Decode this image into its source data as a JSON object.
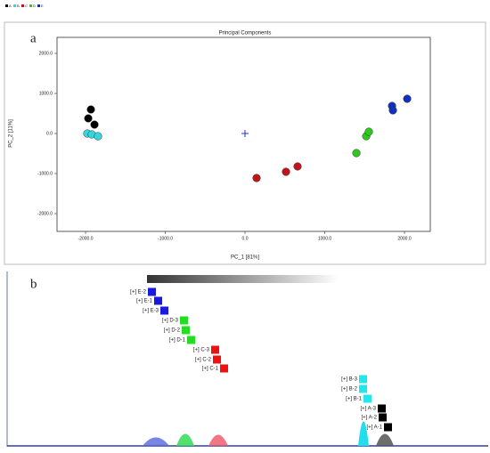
{
  "chart_data": {
    "type": "scatter",
    "title": "Principal Components",
    "panel_label": "a",
    "x_label": "PC_1 [81%]",
    "y_label": "PC_2 [11%]",
    "xlim": [
      -2358,
      2324
    ],
    "ylim": [
      -2444,
      2400
    ],
    "xticks": [
      {
        "value": -2000,
        "label": "-2000.0"
      },
      {
        "value": -1000,
        "label": "-1000.0"
      },
      {
        "value": 0,
        "label": "0.0"
      },
      {
        "value": 1000,
        "label": "1000.0"
      },
      {
        "value": 2000,
        "label": "2000.0"
      }
    ],
    "yticks": [
      {
        "value": -2000,
        "label": "-2000.0"
      },
      {
        "value": -1000,
        "label": "-1000.0"
      },
      {
        "value": 0,
        "label": "0.0"
      },
      {
        "value": 1000,
        "label": "1000.0"
      },
      {
        "value": 2000,
        "label": "2000.0"
      }
    ],
    "series": [
      {
        "name": "A",
        "color": "#000000",
        "x": [
          -1933,
          -1966,
          -1888
        ],
        "values": [
          600,
          378,
          222
        ]
      },
      {
        "name": "B",
        "color": "#33d6e0",
        "x": [
          -1978,
          -1922,
          -1844
        ],
        "values": [
          0,
          -22,
          -67
        ]
      },
      {
        "name": "C",
        "color": "#c0141a",
        "x": [
          145,
          514,
          659
        ],
        "values": [
          -1111,
          -956,
          -822
        ]
      },
      {
        "name": "D",
        "color": "#2ec81e",
        "x": [
          1397,
          1520,
          1553
        ],
        "values": [
          -489,
          -67,
          44
        ]
      },
      {
        "name": "E",
        "color": "#1030c0",
        "x": [
          1844,
          1855,
          2034
        ],
        "values": [
          689,
          578,
          867
        ]
      }
    ]
  },
  "panel_b": {
    "label": "b",
    "groups": [
      {
        "color": "#1a1adc",
        "items": [
          "[+] E-2",
          "[+] E-1",
          "[+] E-3"
        ]
      },
      {
        "color": "#22dd22",
        "items": [
          "[+] D-3",
          "[+] D-2",
          "[+] D-1"
        ]
      },
      {
        "color": "#ee1111",
        "items": [
          "[+] C-3",
          "[+] C-2",
          "[+] C-1"
        ]
      },
      {
        "color": "#22e6ee",
        "items": [
          "[+] B-3",
          "[+] B-2",
          "[+] B-1"
        ]
      },
      {
        "color": "#000000",
        "items": [
          "[+] A-3",
          "[+] A-2",
          "[+] A-1"
        ]
      }
    ]
  }
}
